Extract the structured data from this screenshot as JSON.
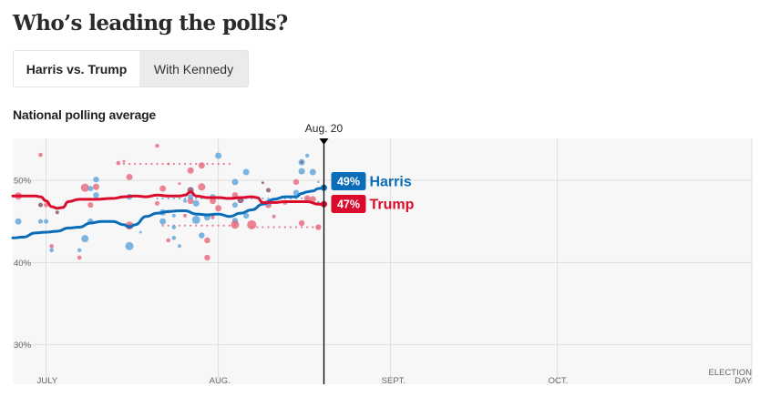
{
  "page": {
    "title": "Who’s leading the polls?",
    "subtitle": "National polling average"
  },
  "tabs": [
    {
      "label": "Harris vs. Trump",
      "active": true
    },
    {
      "label": "With Kennedy",
      "active": false
    }
  ],
  "colors": {
    "harris": "#0a6db7",
    "trump": "#db0b2c",
    "harris_dot": "#5ba3d9",
    "trump_dot": "#e8657a",
    "overlap_dot": "#8a4a6c",
    "plot_bg": "#f7f7f7",
    "grid": "#dedede"
  },
  "chart_data": {
    "type": "line",
    "title": "National polling average",
    "ylabel": "",
    "xlabel": "",
    "ylim": [
      25.2,
      55.1
    ],
    "xlim_days": [
      -6,
      127
    ],
    "x_origin": "July 1",
    "grid": true,
    "y_ticks": [
      {
        "value": 50,
        "label": "50%"
      },
      {
        "value": 40,
        "label": "40%"
      },
      {
        "value": 30,
        "label": "30%"
      }
    ],
    "x_ticks": [
      {
        "day": 0,
        "label": "JULY"
      },
      {
        "day": 31,
        "label": "AUG."
      },
      {
        "day": 62,
        "label": "SEPT."
      },
      {
        "day": 92,
        "label": "OCT."
      },
      {
        "day": 127,
        "label": "ELECTION DAY",
        "lines": [
          "ELECTION",
          "DAY"
        ]
      }
    ],
    "current_marker": {
      "day": 50,
      "label": "Aug. 20"
    },
    "series": [
      {
        "name": "Harris",
        "color_key": "harris",
        "latest_label": "49%",
        "points": [
          [
            -6,
            43.0
          ],
          [
            -4,
            43.1
          ],
          [
            -2,
            43.6
          ],
          [
            0,
            43.7
          ],
          [
            2,
            43.8
          ],
          [
            4,
            44.2
          ],
          [
            6,
            44.3
          ],
          [
            8,
            44.8
          ],
          [
            10,
            45.0
          ],
          [
            12,
            45.0
          ],
          [
            14,
            44.6
          ],
          [
            15,
            44.3
          ],
          [
            16,
            44.6
          ],
          [
            18,
            45.6
          ],
          [
            20,
            46.0
          ],
          [
            22,
            46.2
          ],
          [
            24,
            46.3
          ],
          [
            25,
            46.3
          ],
          [
            27,
            45.9
          ],
          [
            29,
            45.8
          ],
          [
            31,
            45.9
          ],
          [
            33,
            45.6
          ],
          [
            35,
            46.0
          ],
          [
            37,
            46.4
          ],
          [
            39,
            47.1
          ],
          [
            41,
            47.7
          ],
          [
            43,
            48.0
          ],
          [
            45,
            48.0
          ],
          [
            46,
            48.4
          ],
          [
            47,
            48.6
          ],
          [
            48,
            48.7
          ],
          [
            49,
            49.0
          ],
          [
            50,
            49.1
          ]
        ]
      },
      {
        "name": "Trump",
        "color_key": "trump",
        "latest_label": "47%",
        "points": [
          [
            -6,
            48.1
          ],
          [
            -2,
            48.1
          ],
          [
            -1,
            48.0
          ],
          [
            0,
            47.5
          ],
          [
            1,
            46.8
          ],
          [
            2,
            46.6
          ],
          [
            3,
            46.7
          ],
          [
            4,
            47.4
          ],
          [
            6,
            47.7
          ],
          [
            9,
            47.7
          ],
          [
            12,
            47.8
          ],
          [
            14,
            48.0
          ],
          [
            16,
            48.1
          ],
          [
            18,
            48.0
          ],
          [
            20,
            48.2
          ],
          [
            22,
            48.1
          ],
          [
            24,
            48.1
          ],
          [
            25,
            48.2
          ],
          [
            26,
            48.6
          ],
          [
            27,
            48.1
          ],
          [
            29,
            47.9
          ],
          [
            31,
            47.9
          ],
          [
            33,
            47.8
          ],
          [
            35,
            47.9
          ],
          [
            37,
            48.0
          ],
          [
            38,
            47.9
          ],
          [
            39,
            47.3
          ],
          [
            41,
            47.3
          ],
          [
            43,
            47.4
          ],
          [
            45,
            47.4
          ],
          [
            47,
            47.4
          ],
          [
            49,
            47.1
          ],
          [
            50,
            47.1
          ]
        ]
      }
    ],
    "polls": [
      {
        "c": "h",
        "d": -5,
        "v": 45.0,
        "s": 3.5
      },
      {
        "c": "t",
        "d": -5,
        "v": 48.1,
        "s": 4
      },
      {
        "c": "t",
        "d": -1,
        "v": 53.1,
        "s": 2.3
      },
      {
        "c": "o",
        "d": -1,
        "v": 47.0,
        "s": 2.5
      },
      {
        "c": "t",
        "d": 0,
        "v": 47.0,
        "s": 2.5
      },
      {
        "c": "h",
        "d": -1,
        "v": 45.0,
        "s": 2.5
      },
      {
        "c": "h",
        "d": 0,
        "v": 45.0,
        "s": 2.5
      },
      {
        "c": "t",
        "d": 1,
        "v": 42.0,
        "s": 2.3
      },
      {
        "c": "h",
        "d": 1,
        "v": 41.5,
        "s": 2.3
      },
      {
        "c": "o",
        "d": 2,
        "v": 46.1,
        "s": 2
      },
      {
        "c": "h",
        "d": 6,
        "v": 41.5,
        "s": 2.2
      },
      {
        "c": "t",
        "d": 6,
        "v": 40.6,
        "s": 2.3
      },
      {
        "c": "h",
        "d": 8,
        "v": 45.0,
        "s": 3.2
      },
      {
        "c": "h",
        "d": 7,
        "v": 42.9,
        "s": 4
      },
      {
        "c": "t",
        "d": 7,
        "v": 49.1,
        "s": 4.5
      },
      {
        "c": "h",
        "d": 8,
        "v": 49.0,
        "s": 3
      },
      {
        "c": "t",
        "d": 9,
        "v": 49.2,
        "s": 3.5
      },
      {
        "c": "h",
        "d": 9,
        "v": 50.1,
        "s": 3.2
      },
      {
        "c": "h",
        "d": 9,
        "v": 48.2,
        "s": 3.2
      },
      {
        "c": "t",
        "d": 8,
        "v": 47.0,
        "s": 3
      },
      {
        "c": "t",
        "d": 13,
        "v": 52.1,
        "s": 2.3
      },
      {
        "c": "t",
        "d": 14,
        "v": 52.3,
        "s": 1.5
      },
      {
        "c": "t",
        "d": 15,
        "v": 50.4,
        "s": 3.5
      },
      {
        "c": "h",
        "d": 15,
        "v": 48.0,
        "s": 3.2
      },
      {
        "c": "t",
        "d": 15,
        "v": 44.5,
        "s": 4.5
      },
      {
        "c": "o",
        "d": 15,
        "v": 44.5,
        "s": 1.5
      },
      {
        "c": "h",
        "d": 15,
        "v": 42.0,
        "s": 4.5
      },
      {
        "c": "h",
        "d": 17,
        "v": 43.7,
        "s": 1.5
      },
      {
        "c": "t",
        "d": 20,
        "v": 54.2,
        "s": 2.2
      },
      {
        "c": "t",
        "d": 20,
        "v": 47.2,
        "s": 2.5
      },
      {
        "c": "h",
        "d": 21,
        "v": 45.0,
        "s": 3.5
      },
      {
        "c": "h",
        "d": 21,
        "v": 46.1,
        "s": 3.5
      },
      {
        "c": "t",
        "d": 21,
        "v": 49.0,
        "s": 3.5
      },
      {
        "c": "t",
        "d": 22,
        "v": 52.0,
        "s": 1.5
      },
      {
        "c": "t",
        "d": 22,
        "v": 46.2,
        "s": 2
      },
      {
        "c": "t",
        "d": 22,
        "v": 42.7,
        "s": 2.3
      },
      {
        "c": "h",
        "d": 23,
        "v": 43.0,
        "s": 2.3
      },
      {
        "c": "h",
        "d": 23,
        "v": 44.3,
        "s": 2.3
      },
      {
        "c": "h",
        "d": 23,
        "v": 45.7,
        "s": 2
      },
      {
        "c": "t",
        "d": 24,
        "v": 49.6,
        "s": 1.5
      },
      {
        "c": "h",
        "d": 25,
        "v": 47.5,
        "s": 2
      },
      {
        "c": "t",
        "d": 25,
        "v": 45.7,
        "s": 2
      },
      {
        "c": "h",
        "d": 24,
        "v": 42.0,
        "s": 2
      },
      {
        "c": "t",
        "d": 26,
        "v": 51.2,
        "s": 3.5
      },
      {
        "c": "t",
        "d": 26,
        "v": 47.5,
        "s": 3.5
      },
      {
        "c": "h",
        "d": 26,
        "v": 48.0,
        "s": 3
      },
      {
        "c": "o",
        "d": 26,
        "v": 48.8,
        "s": 3.5
      },
      {
        "c": "h",
        "d": 27,
        "v": 45.2,
        "s": 4.5
      },
      {
        "c": "h",
        "d": 27,
        "v": 47.2,
        "s": 3.5
      },
      {
        "c": "t",
        "d": 28,
        "v": 51.8,
        "s": 3.5
      },
      {
        "c": "t",
        "d": 28,
        "v": 49.2,
        "s": 4
      },
      {
        "c": "h",
        "d": 28,
        "v": 43.3,
        "s": 3.2
      },
      {
        "c": "h",
        "d": 29,
        "v": 45.5,
        "s": 3.5
      },
      {
        "c": "t",
        "d": 29,
        "v": 42.7,
        "s": 3.2
      },
      {
        "c": "t",
        "d": 29,
        "v": 40.6,
        "s": 3.2
      },
      {
        "c": "t",
        "d": 30,
        "v": 45.5,
        "s": 2
      },
      {
        "c": "h",
        "d": 30,
        "v": 48.0,
        "s": 3
      },
      {
        "c": "t",
        "d": 30,
        "v": 47.5,
        "s": 3.5
      },
      {
        "c": "h",
        "d": 31,
        "v": 53.0,
        "s": 3.5
      },
      {
        "c": "t",
        "d": 31,
        "v": 46.6,
        "s": 3.5
      },
      {
        "c": "h",
        "d": 34,
        "v": 49.8,
        "s": 3.5
      },
      {
        "c": "t",
        "d": 34,
        "v": 48.2,
        "s": 3.2
      },
      {
        "c": "h",
        "d": 34,
        "v": 45.1,
        "s": 3.2
      },
      {
        "c": "t",
        "d": 34,
        "v": 44.6,
        "s": 4.5
      },
      {
        "c": "h",
        "d": 34,
        "v": 47.0,
        "s": 3
      },
      {
        "c": "o",
        "d": 35,
        "v": 47.6,
        "s": 3.5
      },
      {
        "c": "h",
        "d": 36,
        "v": 51.0,
        "s": 3.5
      },
      {
        "c": "h",
        "d": 36,
        "v": 45.7,
        "s": 3.2
      },
      {
        "c": "t",
        "d": 37,
        "v": 44.6,
        "s": 5
      },
      {
        "c": "o",
        "d": 39,
        "v": 49.7,
        "s": 1.5
      },
      {
        "c": "o",
        "d": 40,
        "v": 48.8,
        "s": 2.5
      },
      {
        "c": "t",
        "d": 40,
        "v": 47.0,
        "s": 3.5
      },
      {
        "c": "h",
        "d": 40,
        "v": 47.3,
        "s": 3.5
      },
      {
        "c": "t",
        "d": 41,
        "v": 45.6,
        "s": 2
      },
      {
        "c": "t",
        "d": 43,
        "v": 47.3,
        "s": 2.5
      },
      {
        "c": "t",
        "d": 45,
        "v": 49.8,
        "s": 3.2
      },
      {
        "c": "h",
        "d": 45,
        "v": 48.5,
        "s": 3.2
      },
      {
        "c": "t",
        "d": 46,
        "v": 44.8,
        "s": 3.2
      },
      {
        "c": "h",
        "d": 46,
        "v": 51.1,
        "s": 3.5
      },
      {
        "c": "h",
        "d": 46,
        "v": 52.2,
        "s": 3.5
      },
      {
        "c": "o",
        "d": 46,
        "v": 52.2,
        "s": 1.5
      },
      {
        "c": "h",
        "d": 47,
        "v": 53.0,
        "s": 2.2
      },
      {
        "c": "t",
        "d": 47,
        "v": 47.8,
        "s": 3.5
      },
      {
        "c": "h",
        "d": 48,
        "v": 51.0,
        "s": 3.5
      },
      {
        "c": "t",
        "d": 48,
        "v": 47.7,
        "s": 3.5
      },
      {
        "c": "h",
        "d": 49,
        "v": 47.3,
        "s": 1.5
      },
      {
        "c": "t",
        "d": 49,
        "v": 44.3,
        "s": 3.2
      },
      {
        "c": "h",
        "d": 49,
        "v": 49.8,
        "s": 1.2
      }
    ],
    "dotted_rows": [
      {
        "c": "t",
        "from": 21,
        "to": 34,
        "v": 44.5
      },
      {
        "c": "t",
        "from": 37,
        "to": 49,
        "v": 44.3
      },
      {
        "c": "h",
        "from": 20,
        "to": 47,
        "v": 47.8
      },
      {
        "c": "t",
        "from": 14,
        "to": 33,
        "v": 52.0
      }
    ]
  }
}
